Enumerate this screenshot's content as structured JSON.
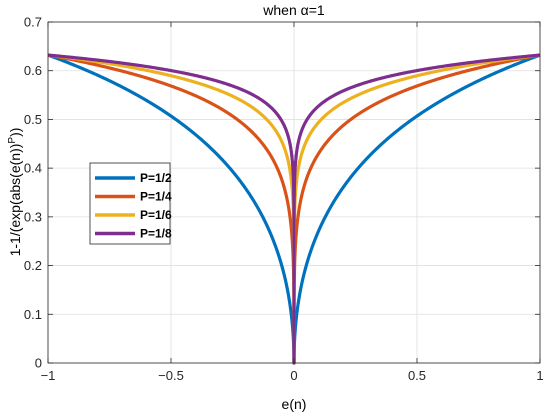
{
  "chart_data": {
    "type": "line",
    "title": "when α=1",
    "xlabel": "e(n)",
    "ylabel": "1-1/(exp(abs(e(n))",
    "ylabel_sup": "P",
    "ylabel_tail": "))",
    "xlim": [
      -1,
      1
    ],
    "ylim": [
      0,
      0.7
    ],
    "xticks": [
      -1,
      -0.5,
      0,
      0.5,
      1
    ],
    "xtick_labels": [
      "−1",
      "−0.5",
      "0",
      "0.5",
      "1"
    ],
    "yticks": [
      0,
      0.1,
      0.2,
      0.3,
      0.4,
      0.5,
      0.6,
      0.7
    ],
    "ytick_labels": [
      "0",
      "0.1",
      "0.2",
      "0.3",
      "0.4",
      "0.5",
      "0.6",
      "0.7"
    ],
    "grid": true,
    "legend_position": "center-left",
    "series": [
      {
        "name": "P=1/2",
        "p": 0.5,
        "color": "#0072BD"
      },
      {
        "name": "P=1/4",
        "p": 0.25,
        "color": "#D95319"
      },
      {
        "name": "P=1/6",
        "p": 0.1666667,
        "color": "#EDB120"
      },
      {
        "name": "P=1/8",
        "p": 0.125,
        "color": "#7E2F8E"
      }
    ]
  }
}
